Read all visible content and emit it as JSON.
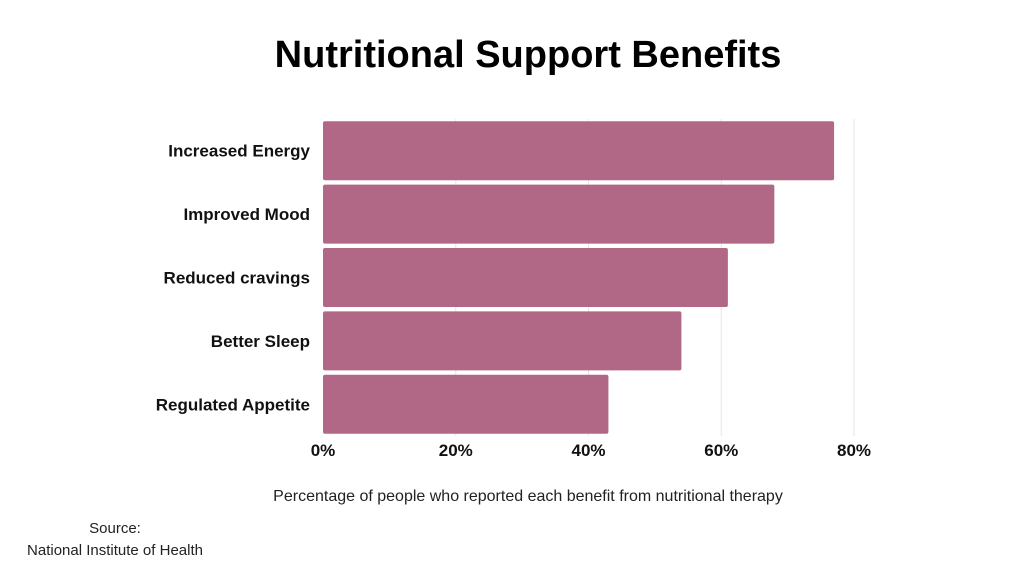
{
  "chart_data": {
    "type": "bar",
    "orientation": "horizontal",
    "title": "Nutritional Support Benefits",
    "categories": [
      "Increased Energy",
      "Improved Mood",
      "Reduced cravings",
      "Better Sleep",
      "Regulated Appetite"
    ],
    "values": [
      77,
      68,
      61,
      54,
      43
    ],
    "xlim": [
      0,
      80
    ],
    "ticks": [
      0,
      20,
      40,
      60,
      80
    ],
    "tick_labels": [
      "0%",
      "20%",
      "40%",
      "60%",
      "80%"
    ],
    "xlabel": "Percentage of people who reported each benefit from nutritional therapy",
    "ylabel": "",
    "grid": true,
    "bar_color": "#b06886",
    "grid_color": "#e6e6e6"
  },
  "source": {
    "label": "Source:",
    "name": "National Institute of Health"
  }
}
